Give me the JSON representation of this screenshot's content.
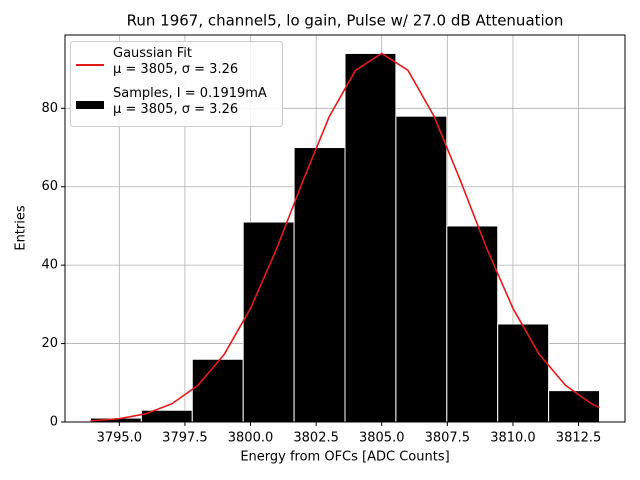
{
  "chart_data": {
    "type": "histogram",
    "title": "Run 1967, channel5, lo gain, Pulse w/ 27.0 dB Attenuation",
    "xlabel": "Energy from OFCs [ADC Counts]",
    "ylabel": "Entries",
    "xlim": [
      3792.93,
      3814.27
    ],
    "ylim": [
      0,
      98.7
    ],
    "xticks": [
      {
        "value": 3795,
        "label": "3795.0"
      },
      {
        "value": 3797.5,
        "label": "3797.5"
      },
      {
        "value": 3800,
        "label": "3800.0"
      },
      {
        "value": 3802.5,
        "label": "3802.5"
      },
      {
        "value": 3805,
        "label": "3805.0"
      },
      {
        "value": 3807.5,
        "label": "3807.5"
      },
      {
        "value": 3810,
        "label": "3810.0"
      },
      {
        "value": 3812.5,
        "label": "3812.5"
      }
    ],
    "yticks": [
      0,
      20,
      40,
      60,
      80
    ],
    "grid": true,
    "legend": "upper left",
    "series": [
      {
        "type": "line",
        "name": "Gaussian Fit\nμ = 3805, σ = 3.26",
        "color": "#e41a1c",
        "x": [
          3793.9,
          3795,
          3796,
          3797,
          3798,
          3799,
          3800,
          3801,
          3802,
          3803,
          3804,
          3805,
          3806,
          3807,
          3808,
          3809,
          3810,
          3811,
          3812,
          3813,
          3813.3
        ],
        "values": [
          0.29,
          0.85,
          2.08,
          4.63,
          9.38,
          17.28,
          28.99,
          44.28,
          61.55,
          77.88,
          89.68,
          94,
          89.68,
          77.88,
          61.55,
          44.28,
          28.99,
          17.28,
          9.38,
          4.63,
          3.68
        ]
      },
      {
        "type": "histogram",
        "name": "Samples, I = 0.1919mA\nμ = 3805, σ = 3.26",
        "color": "#000000",
        "bins": [
          3793.9,
          3795.84,
          3797.78,
          3799.72,
          3801.66,
          3803.6,
          3805.54,
          3807.48,
          3809.42,
          3811.36,
          3813.3
        ],
        "values": [
          1,
          3,
          16,
          51,
          70,
          94,
          78,
          50,
          25,
          8
        ]
      }
    ]
  }
}
